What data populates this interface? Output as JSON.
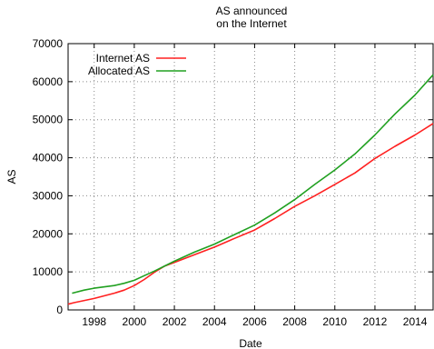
{
  "chart_data": {
    "type": "line",
    "title_lines": [
      "AS announced",
      "on the Internet"
    ],
    "xlabel": "Date",
    "ylabel": "AS",
    "xlim": [
      1996.7,
      2014.9
    ],
    "ylim": [
      0,
      70000
    ],
    "xticks": [
      1998,
      2000,
      2002,
      2004,
      2006,
      2008,
      2010,
      2012,
      2014
    ],
    "xtick_labels": [
      "1998",
      "2000",
      "2002",
      "2004",
      "2006",
      "2008",
      "2010",
      "2012",
      "2014"
    ],
    "yticks": [
      0,
      10000,
      20000,
      30000,
      40000,
      50000,
      60000,
      70000
    ],
    "ytick_labels": [
      "0",
      "10000",
      "20000",
      "30000",
      "40000",
      "50000",
      "60000",
      "70000"
    ],
    "grid": true,
    "legend_position": "top-left",
    "series": [
      {
        "name": "Internet AS",
        "color": "#ff2020",
        "x": [
          1996.7,
          1997,
          1998,
          1999,
          1999.5,
          2000,
          2000.5,
          2001,
          2001.5,
          2002,
          2003,
          2004,
          2005,
          2006,
          2007,
          2008,
          2009,
          2010,
          2011,
          2012,
          2013,
          2014,
          2014.9
        ],
        "y": [
          1500,
          1900,
          3000,
          4400,
          5200,
          6400,
          8000,
          9900,
          11500,
          12500,
          14500,
          16500,
          18800,
          21000,
          24000,
          27200,
          30000,
          33000,
          36000,
          39800,
          43000,
          46000,
          49000
        ]
      },
      {
        "name": "Allocated AS",
        "color": "#20a020",
        "x": [
          1996.9,
          1997.5,
          1998,
          1999,
          1999.5,
          2000,
          2000.5,
          2001,
          2001.5,
          2002,
          2003,
          2004,
          2005,
          2006,
          2007,
          2008,
          2009,
          2010,
          2011,
          2012,
          2013,
          2014,
          2014.9
        ],
        "y": [
          4400,
          5200,
          5700,
          6400,
          7000,
          7800,
          9000,
          10200,
          11500,
          12800,
          15200,
          17300,
          19800,
          22300,
          25500,
          29000,
          33000,
          36800,
          41000,
          46000,
          51500,
          56500,
          61800
        ]
      }
    ]
  }
}
